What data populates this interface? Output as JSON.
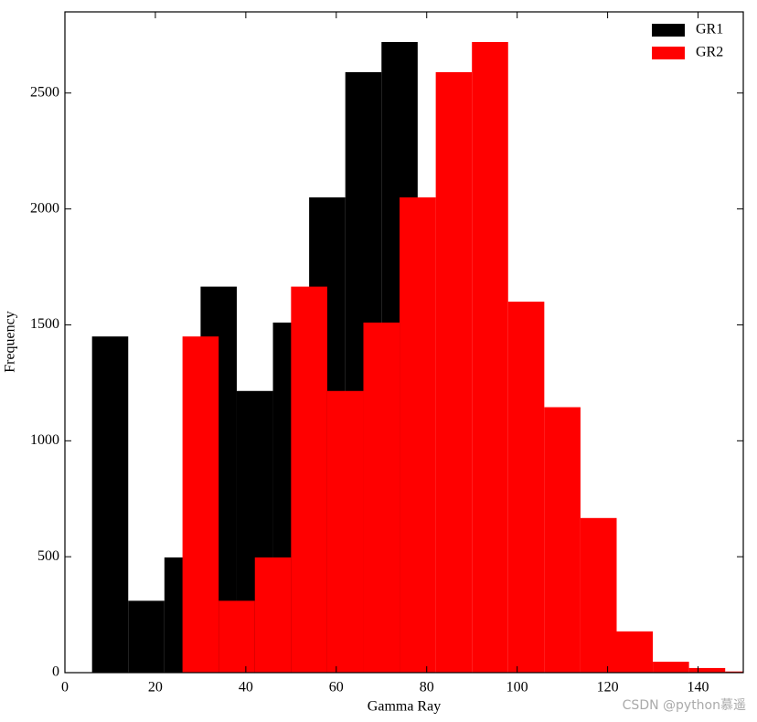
{
  "chart_data": {
    "type": "histogram",
    "xlabel": "Gamma Ray",
    "ylabel": "Frequency",
    "xlim": [
      0,
      150
    ],
    "ylim": [
      0,
      2850
    ],
    "xticks": [
      0,
      20,
      40,
      60,
      80,
      100,
      120,
      140
    ],
    "yticks": [
      0,
      500,
      1000,
      1500,
      2000,
      2500
    ],
    "legend": "upper right",
    "series": [
      {
        "name": "GR1",
        "color": "#000000",
        "bins": [
          6,
          14,
          22,
          30,
          38,
          46,
          54,
          62,
          70,
          78
        ],
        "values": [
          1450,
          310,
          497,
          1665,
          1215,
          1510,
          2050,
          2590,
          2720
        ]
      },
      {
        "name": "GR2",
        "color": "#ff0000",
        "bins": [
          26,
          34,
          42,
          50,
          58,
          66,
          74,
          82,
          90,
          98,
          106,
          114,
          122,
          130,
          138,
          146,
          154
        ],
        "values": [
          1450,
          310,
          497,
          1665,
          1215,
          1510,
          2050,
          2590,
          2720,
          1600,
          1145,
          667,
          178,
          47,
          20,
          5
        ]
      }
    ],
    "watermark": "CSDN @python慕遥"
  }
}
